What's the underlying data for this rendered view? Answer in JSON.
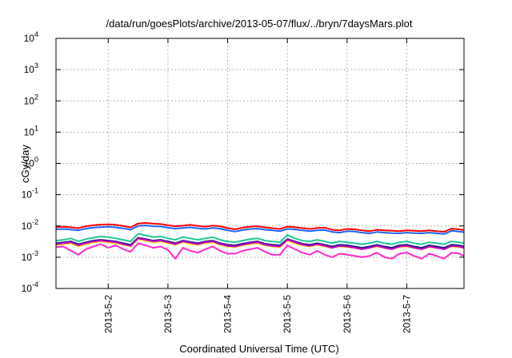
{
  "chart_data": {
    "type": "line",
    "title": "/data/run/goesPlots/archive/2013-05-07/flux/../bryn/7daysMars.plot",
    "xlabel": "Coordinated Universal Time (UTC)",
    "ylabel": "cGy/day",
    "yscale": "log",
    "ylim": [
      0.0001,
      10000
    ],
    "xlim": [
      "2013-05-01T03:00",
      "2013-05-07T23:00"
    ],
    "grid": true,
    "legend": "none",
    "yticks": [
      {
        "base": "10",
        "exp": "-4"
      },
      {
        "base": "10",
        "exp": "-3"
      },
      {
        "base": "10",
        "exp": "-2"
      },
      {
        "base": "10",
        "exp": "-1"
      },
      {
        "base": "10",
        "exp": "0"
      },
      {
        "base": "10",
        "exp": "1"
      },
      {
        "base": "10",
        "exp": "2"
      },
      {
        "base": "10",
        "exp": "3"
      },
      {
        "base": "10",
        "exp": "4"
      }
    ],
    "xticks": [
      "2013-5-2",
      "2013-5-3",
      "2013-5-4",
      "2013-5-5",
      "2013-5-6",
      "2013-5-7"
    ],
    "x": [
      "2013-05-01T03:00",
      "2013-05-01T06:00",
      "2013-05-01T09:00",
      "2013-05-01T12:00",
      "2013-05-01T15:00",
      "2013-05-01T18:00",
      "2013-05-01T21:00",
      "2013-05-02T00:00",
      "2013-05-02T03:00",
      "2013-05-02T06:00",
      "2013-05-02T09:00",
      "2013-05-02T12:00",
      "2013-05-02T15:00",
      "2013-05-02T18:00",
      "2013-05-02T21:00",
      "2013-05-03T00:00",
      "2013-05-03T03:00",
      "2013-05-03T06:00",
      "2013-05-03T09:00",
      "2013-05-03T12:00",
      "2013-05-03T15:00",
      "2013-05-03T18:00",
      "2013-05-03T21:00",
      "2013-05-04T00:00",
      "2013-05-04T03:00",
      "2013-05-04T06:00",
      "2013-05-04T09:00",
      "2013-05-04T12:00",
      "2013-05-04T15:00",
      "2013-05-04T18:00",
      "2013-05-04T21:00",
      "2013-05-05T00:00",
      "2013-05-05T03:00",
      "2013-05-05T06:00",
      "2013-05-05T09:00",
      "2013-05-05T12:00",
      "2013-05-05T15:00",
      "2013-05-05T18:00",
      "2013-05-05T21:00",
      "2013-05-06T00:00",
      "2013-05-06T03:00",
      "2013-05-06T06:00",
      "2013-05-06T09:00",
      "2013-05-06T12:00",
      "2013-05-06T15:00",
      "2013-05-06T18:00",
      "2013-05-06T21:00",
      "2013-05-07T00:00",
      "2013-05-07T03:00",
      "2013-05-07T06:00",
      "2013-05-07T09:00",
      "2013-05-07T12:00",
      "2013-05-07T15:00",
      "2013-05-07T18:00",
      "2013-05-07T21:00",
      "2013-05-07T23:00"
    ],
    "series": [
      {
        "color": "#ff0000",
        "values": [
          0.0092,
          0.0095,
          0.009,
          0.0085,
          0.0098,
          0.0105,
          0.011,
          0.0112,
          0.0108,
          0.01,
          0.009,
          0.012,
          0.0125,
          0.0118,
          0.0115,
          0.0105,
          0.0098,
          0.0102,
          0.0108,
          0.01,
          0.0095,
          0.0102,
          0.0098,
          0.0085,
          0.0078,
          0.0088,
          0.0095,
          0.0098,
          0.009,
          0.0085,
          0.008,
          0.0095,
          0.0092,
          0.0085,
          0.008,
          0.0086,
          0.0088,
          0.0075,
          0.0072,
          0.008,
          0.0078,
          0.0072,
          0.0068,
          0.0075,
          0.0072,
          0.007,
          0.0068,
          0.0072,
          0.007,
          0.0068,
          0.0072,
          0.0068,
          0.0065,
          0.0082,
          0.0078,
          0.0074
        ]
      },
      {
        "color": "#1e64ff",
        "values": [
          0.0078,
          0.008,
          0.0076,
          0.0072,
          0.0082,
          0.0088,
          0.0092,
          0.0094,
          0.009,
          0.0084,
          0.0076,
          0.01,
          0.0104,
          0.0098,
          0.0096,
          0.0088,
          0.0082,
          0.0086,
          0.009,
          0.0084,
          0.008,
          0.0086,
          0.0082,
          0.0072,
          0.0066,
          0.0074,
          0.008,
          0.0082,
          0.0076,
          0.0072,
          0.0068,
          0.008,
          0.0078,
          0.0072,
          0.0068,
          0.0072,
          0.0074,
          0.0064,
          0.0061,
          0.0068,
          0.0066,
          0.0061,
          0.0058,
          0.0064,
          0.0061,
          0.0059,
          0.0058,
          0.0061,
          0.0059,
          0.0058,
          0.0061,
          0.0058,
          0.0055,
          0.007,
          0.0066,
          0.0063
        ]
      },
      {
        "color": "#1ec896",
        "values": [
          0.0034,
          0.0036,
          0.004,
          0.0032,
          0.0038,
          0.0042,
          0.0046,
          0.0044,
          0.004,
          0.0036,
          0.0032,
          0.0056,
          0.005,
          0.0044,
          0.0046,
          0.004,
          0.0036,
          0.0044,
          0.004,
          0.0036,
          0.004,
          0.0044,
          0.0036,
          0.0032,
          0.003,
          0.0034,
          0.0038,
          0.004,
          0.0034,
          0.0032,
          0.003,
          0.0052,
          0.004,
          0.0034,
          0.0032,
          0.0036,
          0.0032,
          0.0028,
          0.0032,
          0.003,
          0.0028,
          0.0026,
          0.0028,
          0.0032,
          0.0028,
          0.0026,
          0.003,
          0.0032,
          0.0028,
          0.0026,
          0.003,
          0.0028,
          0.0026,
          0.0032,
          0.003,
          0.0028
        ]
      },
      {
        "color": "#ffe600",
        "values": [
          0.0024,
          0.0026,
          0.0028,
          0.0022,
          0.0026,
          0.003,
          0.0032,
          0.003,
          0.0028,
          0.0025,
          0.0022,
          0.0038,
          0.0034,
          0.003,
          0.0032,
          0.0028,
          0.0025,
          0.003,
          0.0027,
          0.0025,
          0.0028,
          0.003,
          0.0025,
          0.0022,
          0.0021,
          0.0024,
          0.0026,
          0.0028,
          0.0024,
          0.0022,
          0.0021,
          0.0034,
          0.0028,
          0.0024,
          0.0022,
          0.0025,
          0.0022,
          0.002,
          0.0022,
          0.0021,
          0.002,
          0.0018,
          0.002,
          0.0022,
          0.002,
          0.0018,
          0.0021,
          0.0022,
          0.002,
          0.0018,
          0.0021,
          0.002,
          0.0018,
          0.0022,
          0.0021,
          0.002
        ]
      },
      {
        "color": "#1a1a80",
        "values": [
          0.0028,
          0.003,
          0.0032,
          0.0026,
          0.003,
          0.0034,
          0.0036,
          0.0034,
          0.0032,
          0.0028,
          0.0025,
          0.0042,
          0.0038,
          0.0034,
          0.0036,
          0.0032,
          0.0028,
          0.0034,
          0.0031,
          0.0028,
          0.0032,
          0.0034,
          0.0028,
          0.0025,
          0.0024,
          0.0027,
          0.003,
          0.0032,
          0.0027,
          0.0025,
          0.0024,
          0.0038,
          0.0032,
          0.0027,
          0.0025,
          0.0028,
          0.0025,
          0.0022,
          0.0025,
          0.0024,
          0.0022,
          0.002,
          0.0022,
          0.0025,
          0.0022,
          0.002,
          0.0024,
          0.0025,
          0.0022,
          0.002,
          0.0024,
          0.0022,
          0.002,
          0.0025,
          0.0024,
          0.0022
        ]
      },
      {
        "color": "#c800c8",
        "values": [
          0.0026,
          0.0028,
          0.003,
          0.0024,
          0.0028,
          0.0032,
          0.0034,
          0.0032,
          0.003,
          0.0026,
          0.0023,
          0.004,
          0.0036,
          0.0032,
          0.0034,
          0.003,
          0.0026,
          0.0032,
          0.0029,
          0.0026,
          0.003,
          0.0032,
          0.0026,
          0.0023,
          0.0022,
          0.0025,
          0.0028,
          0.003,
          0.0025,
          0.0023,
          0.0022,
          0.0036,
          0.003,
          0.0025,
          0.0023,
          0.0026,
          0.0023,
          0.002,
          0.0023,
          0.0022,
          0.002,
          0.0018,
          0.002,
          0.0023,
          0.002,
          0.0018,
          0.0022,
          0.0023,
          0.002,
          0.0018,
          0.0022,
          0.002,
          0.0018,
          0.0023,
          0.0022,
          0.002
        ]
      },
      {
        "color": "#ff28d2",
        "values": [
          0.0021,
          0.0022,
          0.0016,
          0.0012,
          0.0018,
          0.0022,
          0.0026,
          0.002,
          0.0024,
          0.0018,
          0.0015,
          0.0028,
          0.0024,
          0.002,
          0.0022,
          0.0017,
          0.0009,
          0.002,
          0.0016,
          0.0014,
          0.0018,
          0.0022,
          0.0016,
          0.0013,
          0.0013,
          0.0016,
          0.0018,
          0.002,
          0.0015,
          0.0012,
          0.0012,
          0.0024,
          0.0018,
          0.0014,
          0.0012,
          0.0016,
          0.0012,
          0.001,
          0.0013,
          0.0012,
          0.0011,
          0.001,
          0.0011,
          0.0014,
          0.001,
          0.0009,
          0.0013,
          0.0014,
          0.0011,
          0.0009,
          0.0013,
          0.0011,
          0.0009,
          0.0014,
          0.0013,
          0.0011
        ]
      }
    ]
  }
}
